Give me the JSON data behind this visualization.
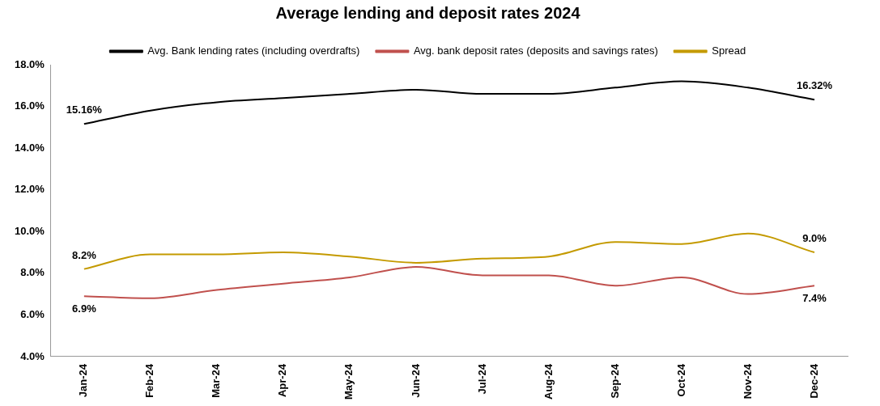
{
  "chart_data": {
    "type": "line",
    "title": "Average lending and deposit rates 2024",
    "categories": [
      "Jan-24",
      "Feb-24",
      "Mar-24",
      "Apr-24",
      "May-24",
      "Jun-24",
      "Jul-24",
      "Aug-24",
      "Sep-24",
      "Oct-24",
      "Nov-24",
      "Dec-24"
    ],
    "series": [
      {
        "name": "Avg. Bank lending rates (including overdrafts)",
        "color": "#000000",
        "values": [
          15.16,
          15.8,
          16.2,
          16.4,
          16.6,
          16.8,
          16.6,
          16.6,
          16.9,
          17.2,
          16.9,
          16.32
        ],
        "value_labels": [
          "15.16%",
          null,
          null,
          null,
          null,
          null,
          null,
          null,
          null,
          null,
          null,
          "16.32%"
        ]
      },
      {
        "name": "Avg. bank deposit rates (deposits and savings rates)",
        "color": "#c0504d",
        "values": [
          6.9,
          6.8,
          7.2,
          7.5,
          7.8,
          8.3,
          7.9,
          7.9,
          7.4,
          7.8,
          7.0,
          7.4
        ],
        "value_labels": [
          "6.9%",
          null,
          null,
          null,
          null,
          null,
          null,
          null,
          null,
          null,
          null,
          "7.4%"
        ]
      },
      {
        "name": "Spread",
        "color": "#c49a00",
        "values": [
          8.2,
          8.9,
          8.9,
          9.0,
          8.8,
          8.5,
          8.7,
          8.8,
          9.5,
          9.4,
          9.9,
          9.0
        ],
        "value_labels": [
          "8.2%",
          null,
          null,
          null,
          null,
          null,
          null,
          null,
          null,
          null,
          null,
          "9.0%"
        ]
      }
    ],
    "ylim": [
      4,
      18
    ],
    "yticks": [
      {
        "value": 4,
        "label": "4.0%"
      },
      {
        "value": 6,
        "label": "6.0%"
      },
      {
        "value": 8,
        "label": "8.0%"
      },
      {
        "value": 10,
        "label": "10.0%"
      },
      {
        "value": 12,
        "label": "12.0%"
      },
      {
        "value": 14,
        "label": "14.0%"
      },
      {
        "value": 16,
        "label": "16.0%"
      },
      {
        "value": 18,
        "label": "18.0%"
      }
    ],
    "grid": false,
    "legend": "top",
    "marker": "none",
    "line_style": "solid"
  }
}
